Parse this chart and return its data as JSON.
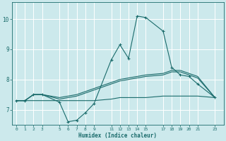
{
  "xlabel": "Humidex (Indice chaleur)",
  "bg_color": "#cce9ec",
  "line_color": "#1a6b6b",
  "grid_color": "#ffffff",
  "xticks": [
    0,
    1,
    2,
    3,
    5,
    6,
    7,
    8,
    9,
    11,
    12,
    13,
    14,
    15,
    17,
    18,
    19,
    20,
    21,
    23
  ],
  "xlim": [
    -0.5,
    24.0
  ],
  "ylim": [
    6.5,
    10.55
  ],
  "yticks": [
    7,
    8,
    9,
    10
  ],
  "series": [
    {
      "x": [
        0,
        1,
        2,
        3,
        5,
        6,
        7,
        8,
        9,
        11,
        12,
        13,
        14,
        15,
        17,
        18,
        19,
        20,
        21,
        23
      ],
      "y": [
        7.3,
        7.3,
        7.5,
        7.5,
        7.25,
        6.6,
        6.65,
        6.9,
        7.2,
        8.65,
        9.15,
        8.7,
        10.1,
        10.05,
        9.6,
        8.4,
        8.15,
        8.1,
        7.85,
        7.4
      ],
      "marker": true
    },
    {
      "x": [
        0,
        1,
        2,
        3,
        5,
        6,
        7,
        8,
        9,
        11,
        12,
        13,
        14,
        15,
        17,
        18,
        19,
        20,
        21,
        23
      ],
      "y": [
        7.3,
        7.3,
        7.5,
        7.5,
        7.4,
        7.45,
        7.5,
        7.6,
        7.7,
        7.9,
        8.0,
        8.05,
        8.1,
        8.15,
        8.2,
        8.3,
        8.3,
        8.2,
        8.1,
        7.4
      ],
      "marker": false
    },
    {
      "x": [
        0,
        1,
        2,
        3,
        5,
        6,
        7,
        8,
        9,
        11,
        12,
        13,
        14,
        15,
        17,
        18,
        19,
        20,
        21,
        23
      ],
      "y": [
        7.3,
        7.3,
        7.5,
        7.5,
        7.35,
        7.4,
        7.45,
        7.55,
        7.65,
        7.85,
        7.95,
        8.0,
        8.05,
        8.1,
        8.15,
        8.25,
        8.25,
        8.15,
        8.05,
        7.4
      ],
      "marker": false
    },
    {
      "x": [
        0,
        1,
        2,
        3,
        5,
        6,
        7,
        8,
        9,
        11,
        12,
        13,
        14,
        15,
        17,
        18,
        19,
        20,
        21,
        23
      ],
      "y": [
        7.3,
        7.3,
        7.3,
        7.3,
        7.3,
        7.3,
        7.3,
        7.3,
        7.3,
        7.35,
        7.4,
        7.4,
        7.4,
        7.4,
        7.45,
        7.45,
        7.45,
        7.45,
        7.45,
        7.4
      ],
      "marker": false
    }
  ]
}
